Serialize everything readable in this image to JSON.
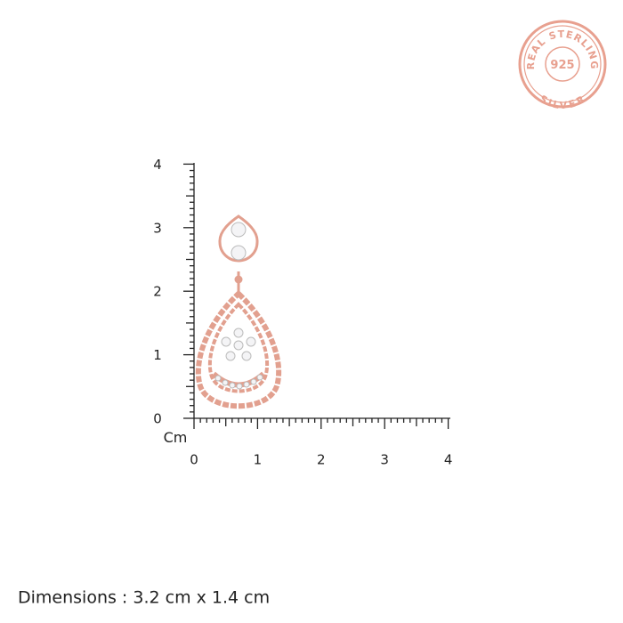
{
  "badge": {
    "top_text": "REAL STERLING",
    "center_text": "925",
    "bottom_text": "SILVER"
  },
  "ruler": {
    "unit": "Cm",
    "y_labels": [
      "0",
      "1",
      "2",
      "3",
      "4"
    ],
    "x_labels": [
      "0",
      "1",
      "2",
      "3",
      "4"
    ]
  },
  "dimensions": "Dimensions : 3.2 cm x 1.4 cm"
}
